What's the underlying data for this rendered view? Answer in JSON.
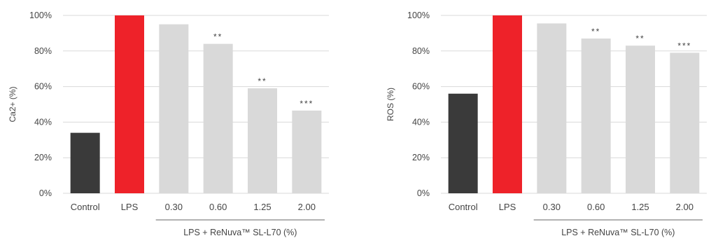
{
  "chart_data": [
    {
      "type": "bar",
      "ylabel": "Ca2+ (%)",
      "xgroup_label": "LPS + ReNuva™ SL-L70 (%)",
      "ylim": [
        0,
        100
      ],
      "yticks": [
        "0%",
        "20%",
        "40%",
        "60%",
        "80%",
        "100%"
      ],
      "grid": true,
      "categories": [
        "Control",
        "LPS",
        "0.30",
        "0.60",
        "1.25",
        "2.00"
      ],
      "values": [
        34,
        100,
        95,
        84,
        59,
        46.5
      ],
      "significance": [
        "",
        "",
        "",
        "**",
        "**",
        "***"
      ],
      "colors": [
        "#3a3a3a",
        "#ee2229",
        "#d9d9d9",
        "#d9d9d9",
        "#d9d9d9",
        "#d9d9d9"
      ]
    },
    {
      "type": "bar",
      "ylabel": "ROS (%)",
      "xgroup_label": "LPS + ReNuva™ SL-L70 (%)",
      "ylim": [
        0,
        100
      ],
      "yticks": [
        "0%",
        "20%",
        "40%",
        "60%",
        "80%",
        "100%"
      ],
      "grid": true,
      "categories": [
        "Control",
        "LPS",
        "0.30",
        "0.60",
        "1.25",
        "2.00"
      ],
      "values": [
        56,
        100,
        95.5,
        87,
        83,
        79
      ],
      "significance": [
        "",
        "",
        "",
        "**",
        "**",
        "***"
      ],
      "colors": [
        "#3a3a3a",
        "#ee2229",
        "#d9d9d9",
        "#d9d9d9",
        "#d9d9d9",
        "#d9d9d9"
      ]
    }
  ]
}
